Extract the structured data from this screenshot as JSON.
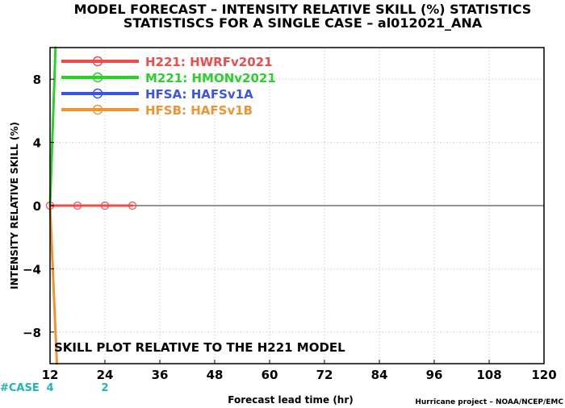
{
  "chart_data": {
    "type": "line",
    "title": "MODEL FORECAST – INTENSITY RELATIVE SKILL (%) STATISTICS",
    "subtitle": "STATISTISCS FOR A SINGLE CASE – al012021_ANA",
    "xlabel": "Forecast lead time (hr)",
    "ylabel": "INTENSITY RELATIVE SKILL (%)",
    "xlim": [
      12,
      120
    ],
    "ylim": [
      -10,
      10
    ],
    "xticks": [
      12,
      24,
      36,
      48,
      60,
      72,
      84,
      96,
      108,
      120
    ],
    "yticks": [
      -8,
      -4,
      0,
      4,
      8
    ],
    "ytick_labels": [
      "−8",
      "−4",
      "0",
      "4",
      "8"
    ],
    "grid": true,
    "legend_position": "top-left",
    "annotation": "SKILL PLOT RELATIVE TO THE H221 MODEL",
    "case_label": "#CASE",
    "case_counts": [
      {
        "x": 12,
        "label": "4"
      },
      {
        "x": 24,
        "label": "2"
      }
    ],
    "series": [
      {
        "name": "H221: HWRFv2021",
        "color": "#f24a4a",
        "x": [
          12,
          18,
          24,
          30
        ],
        "y": [
          0,
          0,
          0,
          0
        ]
      },
      {
        "name": "M221: HMONv2021",
        "color": "#2ad12a",
        "x": [
          12,
          13.2
        ],
        "y": [
          0,
          10
        ]
      },
      {
        "name": "HFSA: HAFSv1A",
        "color": "#3a55e6",
        "x": [],
        "y": []
      },
      {
        "name": "HFSB: HAFSv1B",
        "color": "#f29333",
        "x": [
          12,
          13.5
        ],
        "y": [
          0,
          -10
        ]
      }
    ],
    "credit": "Hurricane project – NOAA/NCEP/EMC"
  }
}
